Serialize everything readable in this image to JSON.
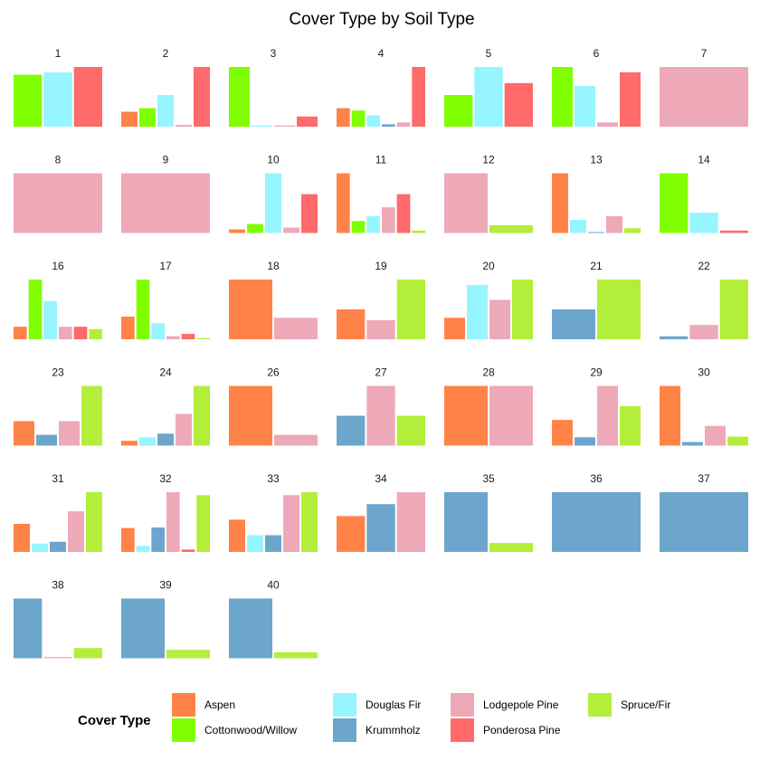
{
  "chart_data": {
    "type": "bar",
    "title": "Cover Type by Soil Type",
    "ylabel": "",
    "xlabel": "",
    "scales": "free_y",
    "grid": false,
    "legend": {
      "title": "Cover Type",
      "position": "bottom"
    },
    "cover_types": [
      "Aspen",
      "Cottonwood/Willow",
      "Douglas Fir",
      "Krummholz",
      "Lodgepole Pine",
      "Ponderosa Pine",
      "Spruce/Fir"
    ],
    "colors": {
      "Aspen": "#FF8347",
      "Cottonwood/Willow": "#7FFF00",
      "Douglas Fir": "#97F5FF",
      "Krummholz": "#6CA6CD",
      "Lodgepole Pine": "#EEA9B8",
      "Ponderosa Pine": "#FF6A6A",
      "Spruce/Fir": "#B3EE3A"
    },
    "panels": [
      {
        "soil": "1",
        "bars": {
          "Cottonwood/Willow": 0.87,
          "Douglas Fir": 0.91,
          "Ponderosa Pine": 1.0
        }
      },
      {
        "soil": "2",
        "bars": {
          "Aspen": 0.25,
          "Cottonwood/Willow": 0.31,
          "Douglas Fir": 0.53,
          "Lodgepole Pine": 0.03,
          "Ponderosa Pine": 1.0
        }
      },
      {
        "soil": "3",
        "bars": {
          "Cottonwood/Willow": 1.0,
          "Douglas Fir": 0.02,
          "Lodgepole Pine": 0.02,
          "Ponderosa Pine": 0.17
        }
      },
      {
        "soil": "4",
        "bars": {
          "Aspen": 0.31,
          "Cottonwood/Willow": 0.27,
          "Douglas Fir": 0.19,
          "Krummholz": 0.04,
          "Lodgepole Pine": 0.07,
          "Ponderosa Pine": 1.0
        }
      },
      {
        "soil": "5",
        "bars": {
          "Cottonwood/Willow": 0.53,
          "Douglas Fir": 1.0,
          "Ponderosa Pine": 0.73
        }
      },
      {
        "soil": "6",
        "bars": {
          "Cottonwood/Willow": 1.0,
          "Douglas Fir": 0.68,
          "Lodgepole Pine": 0.07,
          "Ponderosa Pine": 0.91
        }
      },
      {
        "soil": "7",
        "bars": {
          "Lodgepole Pine": 1.0
        }
      },
      {
        "soil": "8",
        "bars": {
          "Lodgepole Pine": 1.0
        }
      },
      {
        "soil": "9",
        "bars": {
          "Lodgepole Pine": 1.0
        }
      },
      {
        "soil": "10",
        "bars": {
          "Aspen": 0.06,
          "Cottonwood/Willow": 0.15,
          "Douglas Fir": 1.0,
          "Lodgepole Pine": 0.09,
          "Ponderosa Pine": 0.65
        }
      },
      {
        "soil": "11",
        "bars": {
          "Aspen": 1.0,
          "Cottonwood/Willow": 0.2,
          "Douglas Fir": 0.28,
          "Lodgepole Pine": 0.43,
          "Ponderosa Pine": 0.65,
          "Spruce/Fir": 0.04
        }
      },
      {
        "soil": "12",
        "bars": {
          "Lodgepole Pine": 1.0,
          "Spruce/Fir": 0.13
        }
      },
      {
        "soil": "13",
        "bars": {
          "Aspen": 1.0,
          "Douglas Fir": 0.22,
          "Lodgepole Pine": 0.28,
          "Krummholz": 0.01,
          "Spruce/Fir": 0.08
        }
      },
      {
        "soil": "14",
        "bars": {
          "Cottonwood/Willow": 1.0,
          "Douglas Fir": 0.34,
          "Ponderosa Pine": 0.04
        }
      },
      {
        "soil": "16",
        "bars": {
          "Aspen": 0.21,
          "Cottonwood/Willow": 1.0,
          "Douglas Fir": 0.64,
          "Lodgepole Pine": 0.21,
          "Ponderosa Pine": 0.21,
          "Spruce/Fir": 0.17
        }
      },
      {
        "soil": "17",
        "bars": {
          "Aspen": 0.38,
          "Cottonwood/Willow": 1.0,
          "Douglas Fir": 0.27,
          "Lodgepole Pine": 0.05,
          "Ponderosa Pine": 0.09,
          "Spruce/Fir": 0.02
        }
      },
      {
        "soil": "18",
        "bars": {
          "Aspen": 1.0,
          "Lodgepole Pine": 0.36
        }
      },
      {
        "soil": "19",
        "bars": {
          "Aspen": 0.5,
          "Lodgepole Pine": 0.32,
          "Spruce/Fir": 1.0
        }
      },
      {
        "soil": "20",
        "bars": {
          "Aspen": 0.36,
          "Douglas Fir": 0.91,
          "Lodgepole Pine": 0.66,
          "Spruce/Fir": 1.0
        }
      },
      {
        "soil": "21",
        "bars": {
          "Krummholz": 0.5,
          "Spruce/Fir": 1.0
        }
      },
      {
        "soil": "22",
        "bars": {
          "Krummholz": 0.05,
          "Lodgepole Pine": 0.24,
          "Spruce/Fir": 1.0
        }
      },
      {
        "soil": "23",
        "bars": {
          "Aspen": 0.41,
          "Krummholz": 0.18,
          "Lodgepole Pine": 0.41,
          "Spruce/Fir": 1.0
        }
      },
      {
        "soil": "24",
        "bars": {
          "Aspen": 0.08,
          "Douglas Fir": 0.14,
          "Krummholz": 0.2,
          "Lodgepole Pine": 0.53,
          "Spruce/Fir": 1.0
        }
      },
      {
        "soil": "26",
        "bars": {
          "Aspen": 1.0,
          "Lodgepole Pine": 0.18
        }
      },
      {
        "soil": "27",
        "bars": {
          "Krummholz": 0.5,
          "Lodgepole Pine": 1.0,
          "Spruce/Fir": 0.5
        }
      },
      {
        "soil": "28",
        "bars": {
          "Aspen": 1.0,
          "Lodgepole Pine": 1.0
        }
      },
      {
        "soil": "29",
        "bars": {
          "Aspen": 0.43,
          "Krummholz": 0.14,
          "Lodgepole Pine": 1.0,
          "Spruce/Fir": 0.66
        }
      },
      {
        "soil": "30",
        "bars": {
          "Aspen": 1.0,
          "Krummholz": 0.06,
          "Lodgepole Pine": 0.33,
          "Spruce/Fir": 0.15
        }
      },
      {
        "soil": "31",
        "bars": {
          "Aspen": 0.47,
          "Douglas Fir": 0.14,
          "Krummholz": 0.17,
          "Lodgepole Pine": 0.68,
          "Spruce/Fir": 1.0
        }
      },
      {
        "soil": "32",
        "bars": {
          "Aspen": 0.4,
          "Douglas Fir": 0.1,
          "Krummholz": 0.41,
          "Lodgepole Pine": 1.0,
          "Ponderosa Pine": 0.04,
          "Spruce/Fir": 0.95
        }
      },
      {
        "soil": "33",
        "bars": {
          "Aspen": 0.54,
          "Douglas Fir": 0.28,
          "Krummholz": 0.28,
          "Lodgepole Pine": 0.95,
          "Spruce/Fir": 1.0
        }
      },
      {
        "soil": "34",
        "bars": {
          "Aspen": 0.6,
          "Krummholz": 0.8,
          "Lodgepole Pine": 1.0
        }
      },
      {
        "soil": "35",
        "bars": {
          "Krummholz": 1.0,
          "Spruce/Fir": 0.15
        }
      },
      {
        "soil": "36",
        "bars": {
          "Krummholz": 1.0
        }
      },
      {
        "soil": "37",
        "bars": {
          "Krummholz": 1.0
        }
      },
      {
        "soil": "38",
        "bars": {
          "Krummholz": 1.0,
          "Lodgepole Pine": 0.02,
          "Spruce/Fir": 0.17
        }
      },
      {
        "soil": "39",
        "bars": {
          "Krummholz": 1.0,
          "Spruce/Fir": 0.14
        }
      },
      {
        "soil": "40",
        "bars": {
          "Krummholz": 1.0,
          "Spruce/Fir": 0.1
        }
      }
    ]
  }
}
